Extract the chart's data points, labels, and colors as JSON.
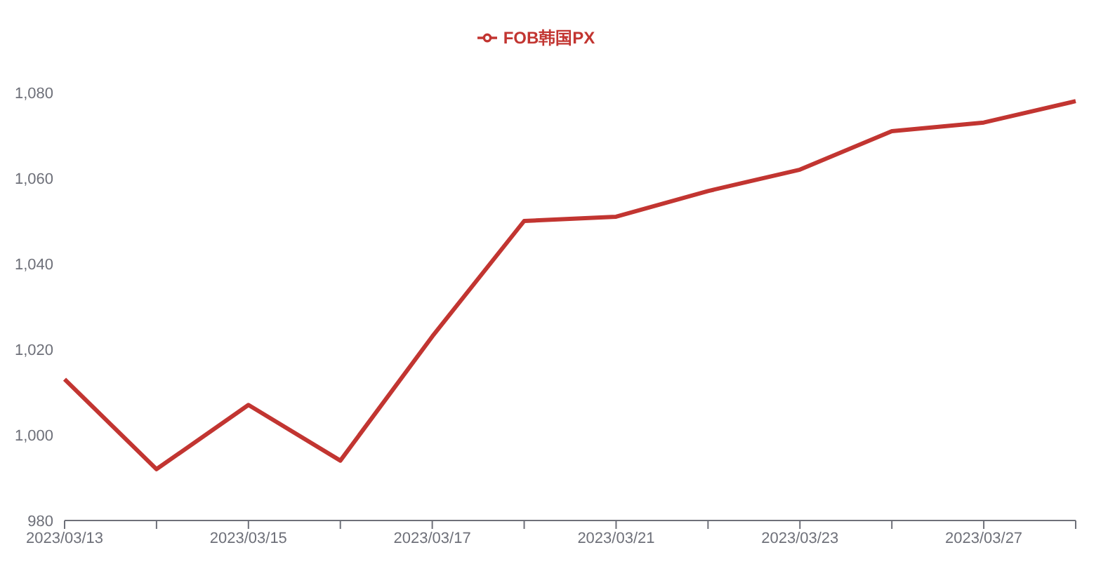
{
  "chart_data": {
    "type": "line",
    "categories": [
      "2023/03/13",
      null,
      "2023/03/15",
      null,
      "2023/03/17",
      null,
      "2023/03/21",
      null,
      "2023/03/23",
      null,
      "2023/03/27",
      null
    ],
    "series": [
      {
        "name": "FOB韩国PX",
        "color": "#c23531",
        "values": [
          1013,
          992,
          1007,
          994,
          1023,
          1050,
          1051,
          1057,
          1062,
          1071,
          1073,
          1078
        ]
      }
    ],
    "ylim": [
      980,
      1080
    ],
    "yticks": [
      980,
      {
        "value": 1000,
        "label": "1,000"
      },
      {
        "value": 1020,
        "label": "1,020"
      },
      {
        "value": 1040,
        "label": "1,040"
      },
      {
        "value": 1060,
        "label": "1,060"
      },
      {
        "value": 1080,
        "label": "1,080"
      }
    ],
    "grid": false,
    "legend": "top",
    "marker": "none",
    "line_style": "solid"
  }
}
